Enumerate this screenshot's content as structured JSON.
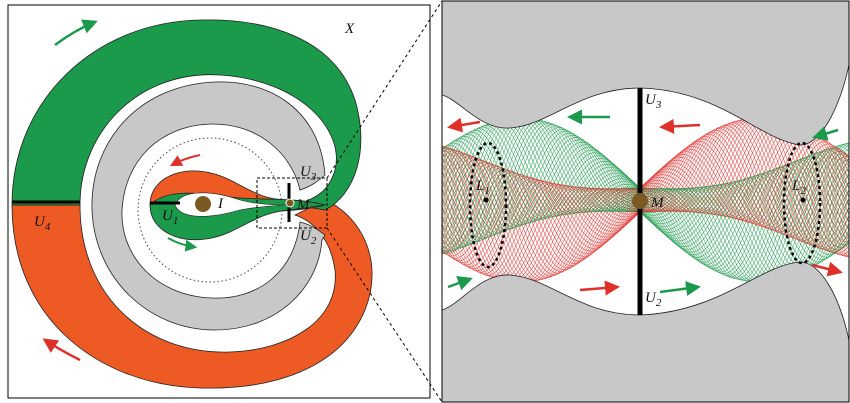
{
  "left_panel": {
    "X": "X",
    "U4": {
      "base": "U",
      "sub": "4"
    },
    "U1": {
      "base": "U",
      "sub": "1"
    },
    "I": "I",
    "M": "M",
    "U3": {
      "base": "U",
      "sub": "3"
    },
    "U2": {
      "base": "U",
      "sub": "2"
    }
  },
  "right_panel": {
    "U3": {
      "base": "U",
      "sub": "3"
    },
    "U2": {
      "base": "U",
      "sub": "2"
    },
    "M": "M",
    "L1": {
      "base": "L",
      "sub": "1"
    },
    "L2": {
      "base": "L",
      "sub": "2"
    }
  }
}
